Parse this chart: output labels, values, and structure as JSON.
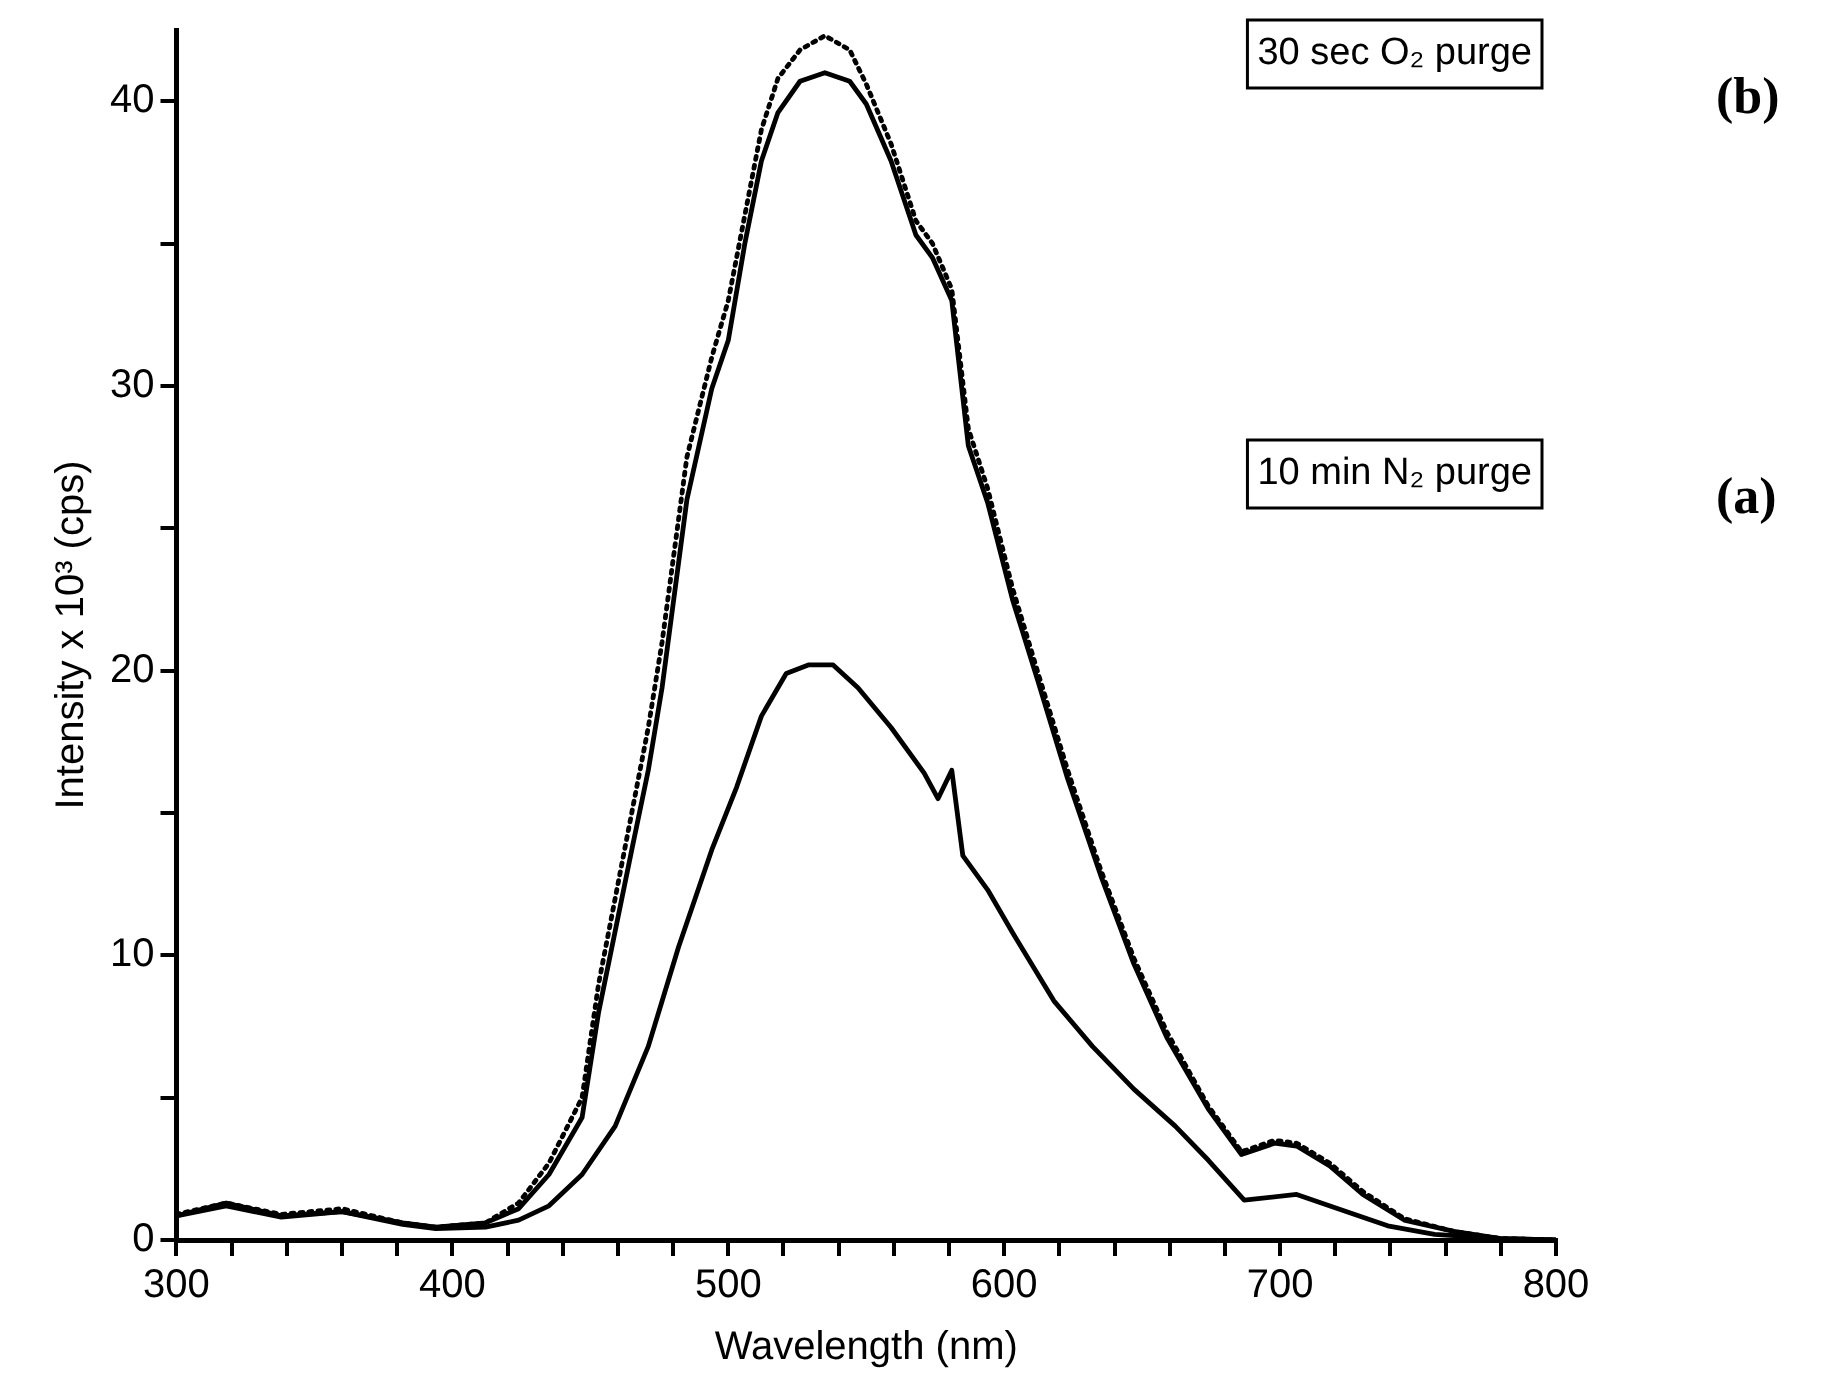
{
  "chart_data": {
    "type": "line",
    "xlabel": "Wavelength (nm)",
    "ylabel": "Intensity x 10³ (cps)",
    "xlim": [
      300,
      800
    ],
    "ylim": [
      0,
      42.5
    ],
    "xticks": [
      300,
      {
        "value": 320,
        "label": null
      },
      {
        "value": 340,
        "label": null
      },
      {
        "value": 360,
        "label": null
      },
      {
        "value": 380,
        "label": null
      },
      400,
      {
        "value": 420,
        "label": null
      },
      {
        "value": 440,
        "label": null
      },
      {
        "value": 460,
        "label": null
      },
      {
        "value": 480,
        "label": null
      },
      500,
      {
        "value": 520,
        "label": null
      },
      {
        "value": 540,
        "label": null
      },
      {
        "value": 560,
        "label": null
      },
      {
        "value": 580,
        "label": null
      },
      600,
      {
        "value": 620,
        "label": null
      },
      {
        "value": 640,
        "label": null
      },
      {
        "value": 660,
        "label": null
      },
      {
        "value": 680,
        "label": null
      },
      700,
      {
        "value": 720,
        "label": null
      },
      {
        "value": 740,
        "label": null
      },
      {
        "value": 760,
        "label": null
      },
      {
        "value": 780,
        "label": null
      },
      800
    ],
    "yticks": [
      0,
      {
        "value": 5,
        "label": null
      },
      10,
      {
        "value": 15,
        "label": null
      },
      20,
      {
        "value": 25,
        "label": null
      },
      30,
      {
        "value": 35,
        "label": null
      },
      40
    ],
    "grid": false,
    "legend": false,
    "marker": "none",
    "annotations": [
      "30 sec O₂ purge",
      "10 min N₂ purge",
      "(b)",
      "(a)"
    ],
    "series": [
      {
        "color": "#000000",
        "line_style": "solid",
        "x": [
          300,
          318,
          338,
          360,
          382,
          394,
          412,
          424,
          435,
          447,
          453,
          465,
          471,
          476,
          485,
          494,
          500,
          506,
          512,
          518,
          526,
          535,
          544,
          550,
          559,
          568,
          574,
          581,
          587,
          594,
          603,
          612,
          623,
          635,
          647,
          659,
          674,
          686,
          698,
          706,
          718,
          730,
          745,
          763,
          780,
          800
        ],
        "values": [
          0.85,
          1.3,
          0.85,
          1.0,
          0.6,
          0.45,
          0.6,
          1.1,
          2.3,
          4.3,
          8.0,
          13.7,
          16.5,
          19.4,
          26,
          29.9,
          31.6,
          35.0,
          37.9,
          39.6,
          40.7,
          41.0,
          40.7,
          39.9,
          37.9,
          35.3,
          34.5,
          33.0,
          27.9,
          25.9,
          22.5,
          19.7,
          16.2,
          12.8,
          9.7,
          7.1,
          4.6,
          3.0,
          3.4,
          3.3,
          2.6,
          1.6,
          0.7,
          0.3,
          0.05,
          0
        ]
      },
      {
        "color": "#000000",
        "line_style": "dotted",
        "x": [
          300,
          318,
          338,
          360,
          382,
          394,
          412,
          424,
          435,
          447,
          453,
          465,
          471,
          476,
          485,
          494,
          500,
          506,
          512,
          518,
          526,
          535,
          544,
          550,
          559,
          568,
          574,
          581,
          587,
          594,
          603,
          612,
          623,
          635,
          647,
          659,
          674,
          686,
          698,
          706,
          718,
          730,
          745,
          763,
          780,
          800
        ],
        "values": [
          0.9,
          1.3,
          0.9,
          1.1,
          0.6,
          0.45,
          0.6,
          1.3,
          2.7,
          5.0,
          9.0,
          15.0,
          18.0,
          21.0,
          27.5,
          31.0,
          33.0,
          36.0,
          39.0,
          40.8,
          41.8,
          42.3,
          41.8,
          40.6,
          38.5,
          35.8,
          35.0,
          33.4,
          28.5,
          26.4,
          22.9,
          20.0,
          16.5,
          13.0,
          9.9,
          7.3,
          4.7,
          3.1,
          3.5,
          3.4,
          2.7,
          1.7,
          0.75,
          0.3,
          0.05,
          0
        ]
      },
      {
        "color": "#000000",
        "line_style": "solid",
        "x": [
          300,
          318,
          338,
          360,
          382,
          394,
          412,
          424,
          435,
          447,
          459,
          471,
          482,
          494,
          503,
          512,
          521,
          529,
          538,
          547,
          559,
          571,
          576,
          581,
          585,
          594,
          603,
          618,
          632,
          647,
          662,
          674,
          687,
          706,
          721,
          739,
          756,
          780,
          800
        ],
        "values": [
          0.85,
          1.2,
          0.8,
          1.0,
          0.55,
          0.4,
          0.45,
          0.7,
          1.2,
          2.3,
          4.0,
          6.8,
          10.3,
          13.7,
          15.9,
          18.4,
          19.9,
          20.2,
          20.2,
          19.4,
          18.0,
          16.4,
          15.5,
          16.5,
          13.5,
          12.3,
          10.8,
          8.4,
          6.8,
          5.3,
          4.0,
          2.8,
          1.4,
          1.6,
          1.1,
          0.5,
          0.2,
          0.05,
          0
        ]
      }
    ]
  }
}
